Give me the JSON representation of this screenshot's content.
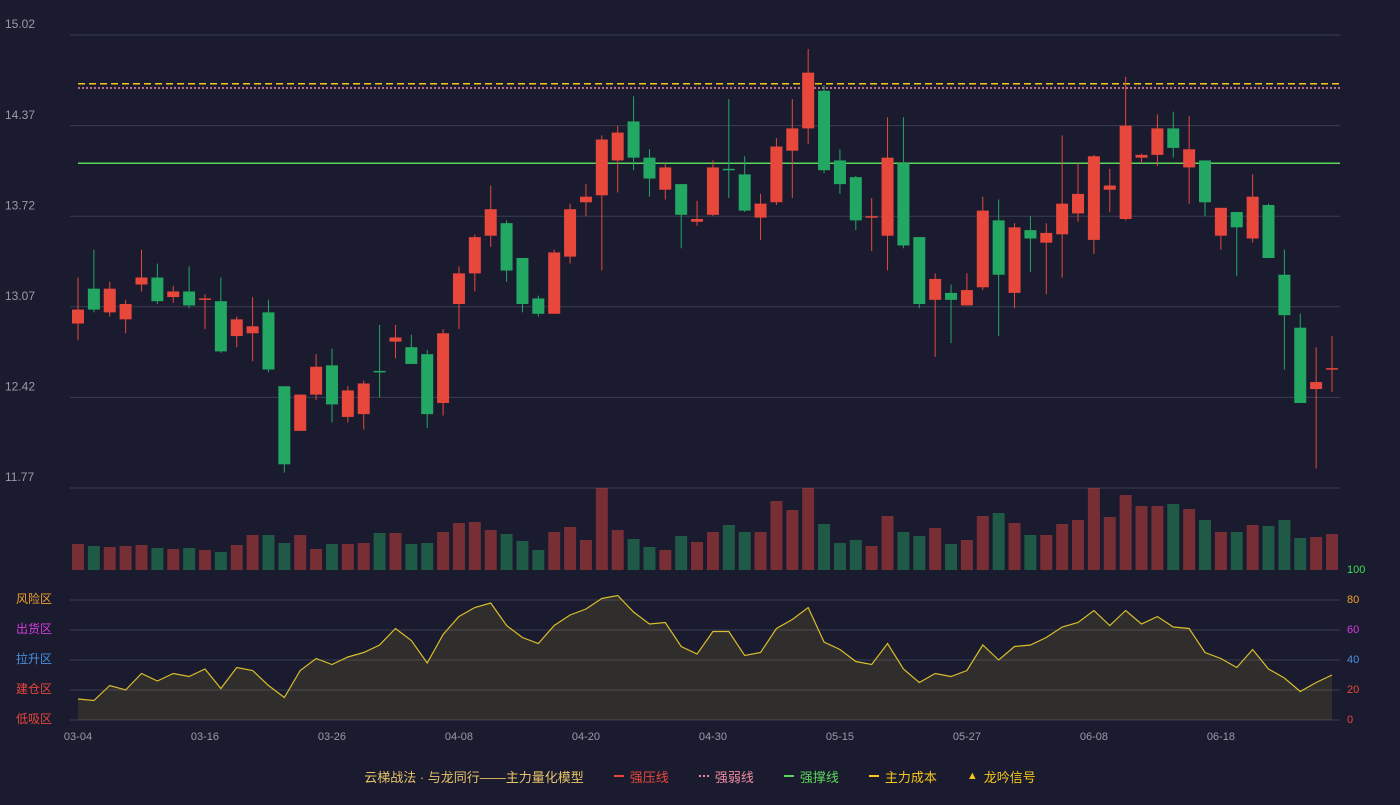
{
  "chart_data": [
    {
      "type": "candlestick",
      "categories": [
        "03-04",
        null,
        null,
        null,
        null,
        null,
        null,
        null,
        "03-16",
        null,
        null,
        null,
        null,
        null,
        null,
        null,
        "03-26",
        null,
        null,
        null,
        null,
        null,
        null,
        null,
        "04-08",
        null,
        null,
        null,
        null,
        null,
        null,
        null,
        "04-20",
        null,
        null,
        null,
        null,
        null,
        null,
        null,
        "04-30",
        null,
        null,
        null,
        null,
        null,
        null,
        null,
        "05-15",
        null,
        null,
        null,
        null,
        null,
        null,
        null,
        "05-27",
        null,
        null,
        null,
        null,
        null,
        null,
        null,
        "06-08",
        null,
        null,
        null,
        null,
        null,
        null,
        null,
        "06-18",
        null,
        null,
        null,
        null,
        null,
        null,
        null
      ],
      "open": [
        12.95,
        13.2,
        13.03,
        12.98,
        13.23,
        13.28,
        13.14,
        13.18,
        13.12,
        13.11,
        12.86,
        12.88,
        13.03,
        12.5,
        12.18,
        12.44,
        12.65,
        12.28,
        12.3,
        12.61,
        12.82,
        12.78,
        12.73,
        12.38,
        13.09,
        13.31,
        13.58,
        13.67,
        13.42,
        13.13,
        13.02,
        13.43,
        13.82,
        13.87,
        14.12,
        14.4,
        14.14,
        13.91,
        13.95,
        13.68,
        13.73,
        14.06,
        14.02,
        13.71,
        13.82,
        14.19,
        14.35,
        14.62,
        14.12,
        14.0,
        13.71,
        13.58,
        14.1,
        13.57,
        13.12,
        13.17,
        13.08,
        13.21,
        13.69,
        13.17,
        13.62,
        13.53,
        13.59,
        13.74,
        13.55,
        13.91,
        13.7,
        14.14,
        14.16,
        14.35,
        14.07,
        14.12,
        13.58,
        13.75,
        13.56,
        13.8,
        13.3,
        12.92,
        12.48,
        12.62
      ],
      "close": [
        13.05,
        13.05,
        13.2,
        13.09,
        13.28,
        13.11,
        13.18,
        13.08,
        13.13,
        12.75,
        12.98,
        12.93,
        12.62,
        11.94,
        12.44,
        12.64,
        12.37,
        12.47,
        12.52,
        12.6,
        12.85,
        12.66,
        12.3,
        12.88,
        13.31,
        13.57,
        13.77,
        13.33,
        13.09,
        13.02,
        13.46,
        13.77,
        13.86,
        14.27,
        14.32,
        14.14,
        13.99,
        14.07,
        13.73,
        13.7,
        14.07,
        14.05,
        13.76,
        13.81,
        14.22,
        14.35,
        14.75,
        14.05,
        13.95,
        13.69,
        13.72,
        14.14,
        13.51,
        13.09,
        13.27,
        13.12,
        13.19,
        13.76,
        13.3,
        13.64,
        13.56,
        13.6,
        13.81,
        13.88,
        14.15,
        13.94,
        14.37,
        14.16,
        14.35,
        14.21,
        14.2,
        13.82,
        13.78,
        13.64,
        13.86,
        13.42,
        13.01,
        12.38,
        12.53,
        12.63
      ],
      "high": [
        13.28,
        13.48,
        13.25,
        13.12,
        13.48,
        13.38,
        13.22,
        13.36,
        13.16,
        13.28,
        13.0,
        13.14,
        13.12,
        12.5,
        12.44,
        12.73,
        12.77,
        12.5,
        12.54,
        12.94,
        12.94,
        12.87,
        12.76,
        12.91,
        13.36,
        13.59,
        13.94,
        13.69,
        13.42,
        13.15,
        13.48,
        13.81,
        13.95,
        14.3,
        14.37,
        14.58,
        14.2,
        14.1,
        13.95,
        13.83,
        14.12,
        14.56,
        14.15,
        13.88,
        14.28,
        14.56,
        14.92,
        14.66,
        14.2,
        14.01,
        13.85,
        14.43,
        14.43,
        13.57,
        13.31,
        13.23,
        13.31,
        13.86,
        13.84,
        13.67,
        13.72,
        13.67,
        14.3,
        14.1,
        14.16,
        14.06,
        14.72,
        14.17,
        14.45,
        14.47,
        14.44,
        14.12,
        13.78,
        13.75,
        14.02,
        13.81,
        13.48,
        13.02,
        12.78,
        12.86
      ],
      "low": [
        12.83,
        13.03,
        13.0,
        12.88,
        13.18,
        13.09,
        13.1,
        13.06,
        12.91,
        12.74,
        12.78,
        12.68,
        12.6,
        11.88,
        12.18,
        12.4,
        12.24,
        12.24,
        12.19,
        12.42,
        12.7,
        12.66,
        12.2,
        12.29,
        12.91,
        13.18,
        13.5,
        13.25,
        13.03,
        13.0,
        13.02,
        13.38,
        13.72,
        13.33,
        13.89,
        14.05,
        13.86,
        13.84,
        13.49,
        13.65,
        13.72,
        13.85,
        13.75,
        13.55,
        13.8,
        13.85,
        14.24,
        14.03,
        13.88,
        13.62,
        13.47,
        13.33,
        13.49,
        13.06,
        12.71,
        12.81,
        13.08,
        13.19,
        12.86,
        13.06,
        13.32,
        13.16,
        13.28,
        13.68,
        13.45,
        13.75,
        13.69,
        14.1,
        14.08,
        14.14,
        13.81,
        13.72,
        13.48,
        13.29,
        13.53,
        13.42,
        12.62,
        12.38,
        11.91,
        12.46
      ],
      "volume": [
        26,
        24,
        23,
        24,
        25,
        22,
        21,
        22,
        20,
        18,
        25,
        35,
        35,
        27,
        35,
        21,
        26,
        26,
        27,
        37,
        37,
        26,
        27,
        38,
        47,
        48,
        40,
        36,
        29,
        20,
        38,
        43,
        30,
        82,
        40,
        31,
        23,
        20,
        34,
        28,
        38,
        45,
        38,
        38,
        69,
        60,
        82,
        46,
        27,
        30,
        24,
        54,
        38,
        34,
        42,
        26,
        30,
        54,
        57,
        47,
        35,
        35,
        46,
        50,
        82,
        53,
        75,
        64,
        64,
        66,
        61,
        50,
        38,
        38,
        45,
        44,
        50,
        32,
        33,
        36
      ],
      "up_color": "#e8473b",
      "down_color": "#23a863",
      "ylim": [
        11.77,
        15.02
      ],
      "yticks": [
        11.77,
        12.42,
        13.07,
        13.72,
        14.37,
        15.02
      ],
      "grid": true,
      "legend_title": "云梯战法 · 与龙同行——主力量化模型",
      "lines": [
        {
          "name": "强压线",
          "color": "#e8473b",
          "style": "solid"
        },
        {
          "name": "强弱线",
          "color": "#f08ca0",
          "style": "dotted",
          "value": 14.64
        },
        {
          "name": "强撑线",
          "color": "#5ad65a",
          "style": "solid",
          "value": 14.1
        },
        {
          "name": "主力成本",
          "color": "#f5c518",
          "style": "dashed",
          "value": 14.67
        }
      ],
      "markers": [
        {
          "name": "龙吟信号",
          "color": "#f5c518",
          "symbol": "▲"
        }
      ]
    },
    {
      "type": "line",
      "values": [
        14,
        13,
        23,
        20,
        31,
        26,
        31,
        29,
        34,
        21,
        35,
        33,
        23,
        15,
        33,
        41,
        37,
        42,
        45,
        50,
        61,
        53,
        38,
        57,
        69,
        75,
        78,
        63,
        55,
        51,
        63,
        70,
        74,
        81,
        83,
        72,
        64,
        65,
        49,
        44,
        59,
        59,
        43,
        45,
        61,
        67,
        75,
        52,
        47,
        39,
        37,
        51,
        34,
        25,
        31,
        29,
        33,
        50,
        40,
        49,
        50,
        55,
        62,
        65,
        73,
        63,
        73,
        64,
        69,
        62,
        61,
        45,
        41,
        35,
        47,
        34,
        28,
        19,
        25,
        30
      ],
      "color": "#d9bd2a",
      "ylim": [
        0,
        100
      ],
      "yticks": [
        0,
        20,
        40,
        60,
        80,
        100
      ],
      "tick_colors": [
        "#e8473b",
        "#e8473b",
        "#4a90e2",
        "#d63de0",
        "#f0a030",
        "#3ddc5a"
      ],
      "zones": [
        {
          "label": "风险区",
          "value": 80,
          "color": "#f0a030"
        },
        {
          "label": "出货区",
          "value": 60,
          "color": "#d63de0"
        },
        {
          "label": "拉升区",
          "value": 40,
          "color": "#4a90e2"
        },
        {
          "label": "建仓区",
          "value": 20,
          "color": "#e8473b"
        },
        {
          "label": "低吸区",
          "value": 0,
          "color": "#e8473b"
        }
      ]
    }
  ]
}
